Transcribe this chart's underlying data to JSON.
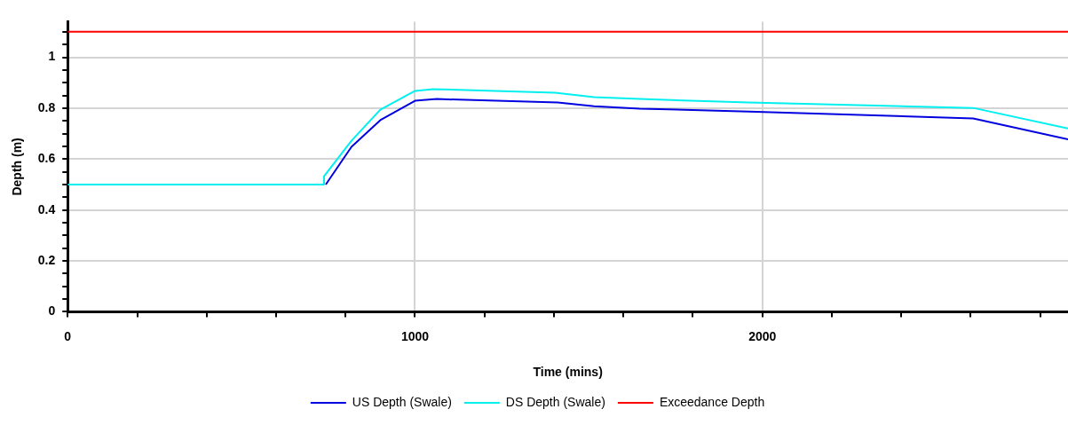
{
  "chart_data": {
    "type": "line",
    "xlabel": "Time (mins)",
    "ylabel": "Depth (m)",
    "xlim": [
      0,
      2880
    ],
    "ylim": [
      0,
      1.14
    ],
    "xticks": [
      0,
      {
        "value": 200,
        "label": null
      },
      {
        "value": 400,
        "label": null
      },
      {
        "value": 600,
        "label": null
      },
      {
        "value": 800,
        "label": null
      },
      1000,
      {
        "value": 1200,
        "label": null
      },
      {
        "value": 1400,
        "label": null
      },
      {
        "value": 1600,
        "label": null
      },
      {
        "value": 1800,
        "label": null
      },
      2000,
      {
        "value": 2200,
        "label": null
      },
      {
        "value": 2400,
        "label": null
      },
      {
        "value": 2600,
        "label": null
      },
      {
        "value": 2800,
        "label": null
      }
    ],
    "yticks": [
      0,
      {
        "value": 0.05,
        "label": null
      },
      {
        "value": 0.1,
        "label": null
      },
      {
        "value": 0.15,
        "label": null
      },
      0.2,
      {
        "value": 0.25,
        "label": null
      },
      {
        "value": 0.3,
        "label": null
      },
      {
        "value": 0.35,
        "label": null
      },
      0.4,
      {
        "value": 0.45,
        "label": null
      },
      {
        "value": 0.5,
        "label": null
      },
      {
        "value": 0.55,
        "label": null
      },
      0.6,
      {
        "value": 0.65,
        "label": null
      },
      {
        "value": 0.7,
        "label": null
      },
      {
        "value": 0.75,
        "label": null
      },
      0.8,
      {
        "value": 0.85,
        "label": null
      },
      {
        "value": 0.9,
        "label": null
      },
      {
        "value": 0.95,
        "label": null
      },
      1,
      {
        "value": 1.05,
        "label": null
      },
      {
        "value": 1.1,
        "label": null
      }
    ],
    "grid": true,
    "legend": "bottom",
    "marker": "none",
    "line_style": "solid",
    "series": [
      {
        "name": "US Depth (Swale)",
        "color": "#0000e0",
        "x": [
          743,
          817,
          900,
          1000,
          1063,
          1411,
          1516,
          1647,
          1961,
          2607,
          2880
        ],
        "values": [
          0.5,
          0.648,
          0.753,
          0.829,
          0.836,
          0.822,
          0.808,
          0.798,
          0.787,
          0.76,
          0.678
        ]
      },
      {
        "name": "DS Depth (Swale)",
        "color": "#00f0f0",
        "x": [
          0,
          736,
          738,
          817,
          900,
          1000,
          1052,
          1403,
          1516,
          1647,
          1961,
          2607,
          2880
        ],
        "values": [
          0.5,
          0.5,
          0.533,
          0.672,
          0.794,
          0.868,
          0.875,
          0.861,
          0.843,
          0.836,
          0.822,
          0.801,
          0.72
        ]
      },
      {
        "name": "Exceedance Depth",
        "color": "#ff0000",
        "x": [
          0,
          2880
        ],
        "values": [
          1.1,
          1.1
        ]
      }
    ]
  }
}
